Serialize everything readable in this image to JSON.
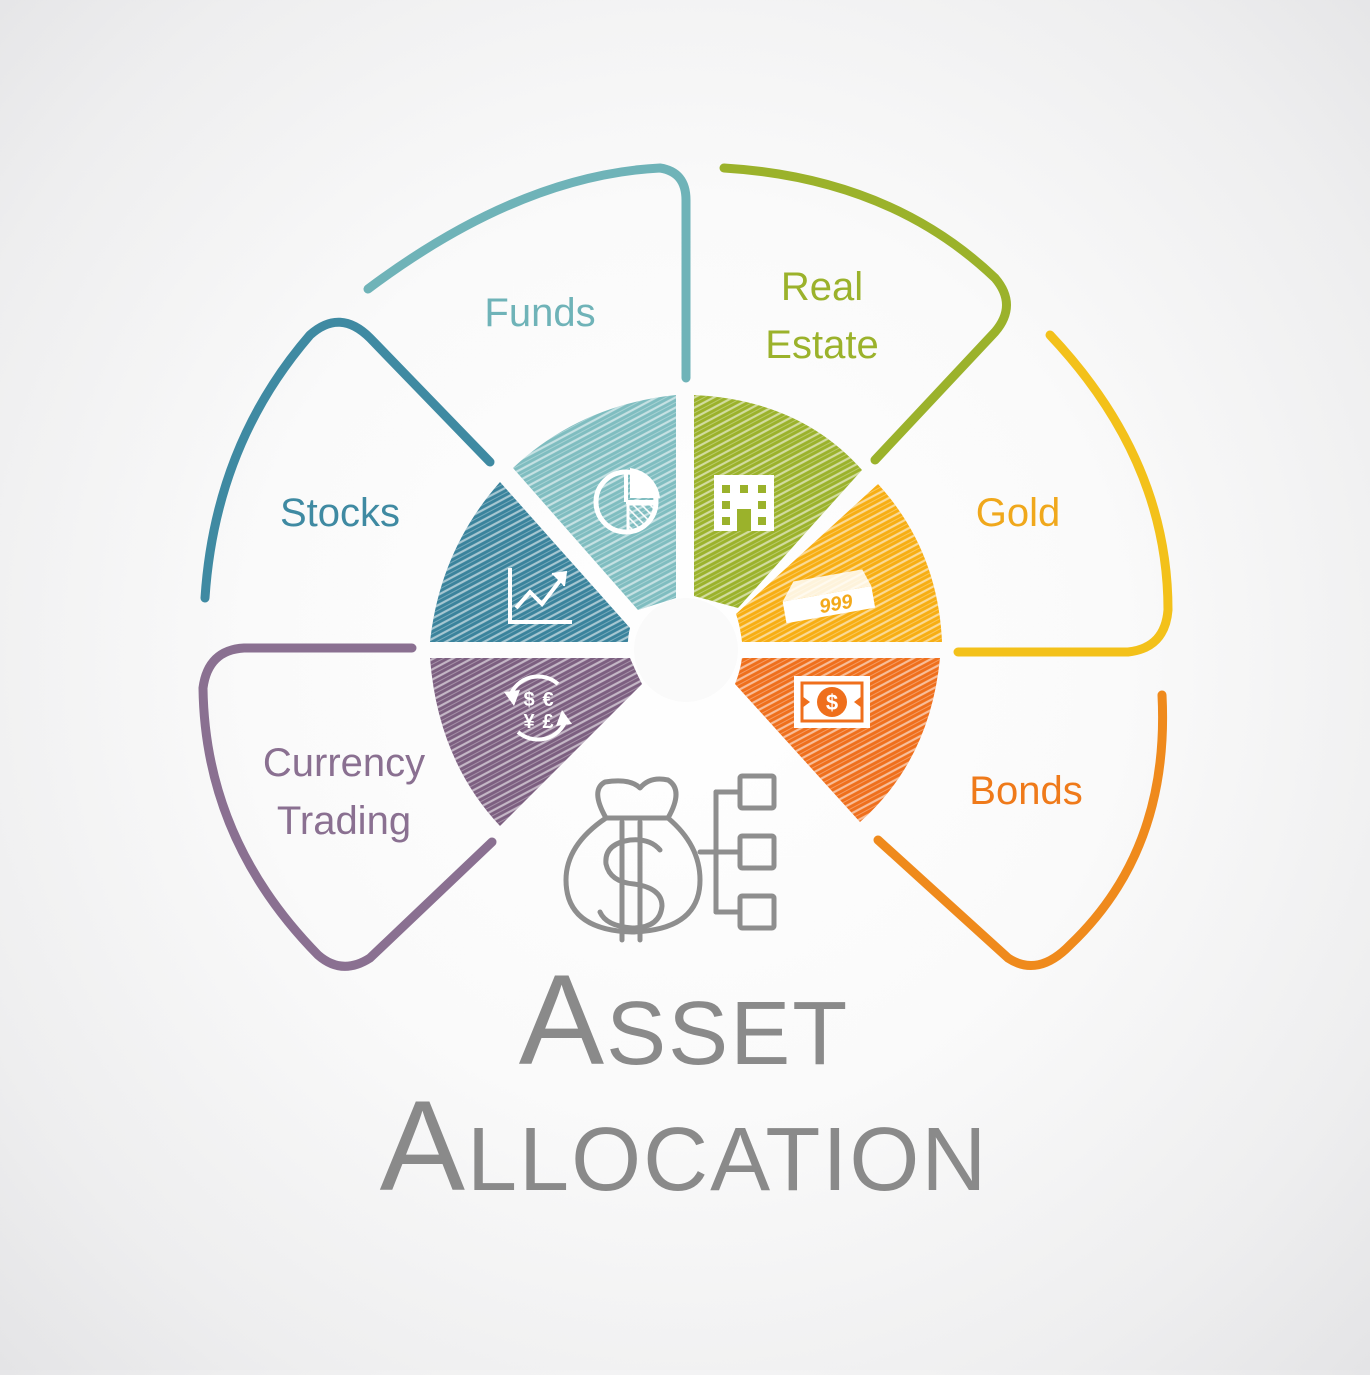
{
  "title": {
    "line1": "Asset",
    "line2": "Allocation"
  },
  "segments": [
    {
      "key": "funds",
      "label_lines": [
        "Funds"
      ],
      "color": "#6fb3b8",
      "icon": "pie-chart-icon"
    },
    {
      "key": "real-estate",
      "label_lines": [
        "Real",
        "Estate"
      ],
      "color": "#9bb22b",
      "icon": "building-icon"
    },
    {
      "key": "gold",
      "label_lines": [
        "Gold"
      ],
      "color": "#f3a91a",
      "icon": "gold-bar-icon"
    },
    {
      "key": "bonds",
      "label_lines": [
        "Bonds"
      ],
      "color": "#ef7a1a",
      "icon": "banknote-icon"
    },
    {
      "key": "currency-trading",
      "label_lines": [
        "Currency",
        "Trading"
      ],
      "color": "#8a7091",
      "icon": "currency-exchange-icon"
    },
    {
      "key": "stocks",
      "label_lines": [
        "Stocks"
      ],
      "color": "#3f8aa2",
      "icon": "rising-chart-icon"
    }
  ],
  "icons": {
    "gold_bar_text": "999",
    "banknote_symbol": "$",
    "currency_symbols": [
      "$",
      "€",
      "¥",
      "£"
    ],
    "center_icon": "money-bag-hierarchy-icon"
  },
  "colors": {
    "title": "#8a8a8a",
    "center_icon": "#8e8e8e"
  }
}
